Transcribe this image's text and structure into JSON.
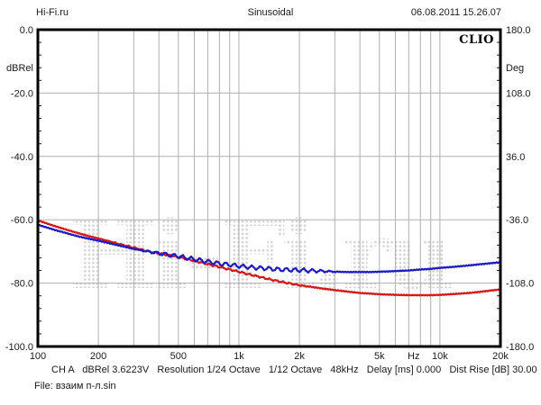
{
  "header": {
    "site": "Hi-Fi.ru",
    "title": "Sinusoidal",
    "datetime": "06.08.2011 15.26.07"
  },
  "brand_label": "CLIO",
  "watermark_text": "Hi-Fi.ru",
  "status_bar": {
    "segments": [
      "CH A",
      "dBRel 3.6223V",
      "Resolution 1/24 Octave",
      "1/12 Octave",
      "48kHz",
      "Delay [ms] 0.000",
      "Dist Rise [dB] 30.00"
    ],
    "line": "CH A   dBRel 3.6223V   Resolution 1/24 Octave   1/12 Octave   48kHz   Delay [ms] 0.000   Dist Rise [dB] 30.00"
  },
  "file_label": "File: взаим п-л.sin",
  "colors": {
    "red_curve": "#dd1414",
    "blue_curve": "#1a1acc",
    "grid": "#b0b0b0",
    "watermark": "#d4d4d4",
    "border": "#000000",
    "text": "#1a1a1a"
  },
  "chart_data": {
    "type": "line",
    "title": "Sinusoidal",
    "x_axis": {
      "scale": "log",
      "min_hz": 100,
      "max_hz": 20000,
      "unit": "Hz",
      "unit_label_pos_hz": 7400,
      "ticks": [
        100,
        200,
        500,
        1000,
        2000,
        5000,
        10000,
        20000
      ],
      "tick_labels": [
        "100",
        "200",
        "500",
        "1k",
        "2k",
        "5k",
        "10k",
        "20k"
      ],
      "grid_hz": [
        200,
        300,
        400,
        500,
        600,
        700,
        800,
        900,
        1000,
        2000,
        3000,
        4000,
        5000,
        6000,
        7000,
        8000,
        9000,
        10000
      ]
    },
    "y_left": {
      "unit": "dBRel",
      "min": -100,
      "max": 0,
      "values": [
        0,
        -20,
        -40,
        -60,
        -80,
        -100
      ],
      "labels": [
        "0.0",
        "-20.0",
        "-40.0",
        "-60.0",
        "-80.0",
        "-100.0"
      ],
      "grid_values": [
        -20,
        -40,
        -60,
        -80
      ],
      "minor_tick_step_db": 4
    },
    "y_right": {
      "unit": "Deg",
      "min": -180,
      "max": 180,
      "labels": [
        "180.0",
        "108.0",
        "36.0",
        "-36.0",
        "-108.0",
        "-180.0"
      ]
    },
    "jitter": {
      "amp_db": 0.12,
      "per_octave": 22
    },
    "series": [
      {
        "id": "red-curve",
        "name": "CH A dBRel (red)",
        "color": "#dd1414",
        "ripple": {
          "amp_db": 0.2,
          "per_octave": 9,
          "from_hz": 200,
          "to_hz": 2500
        },
        "points_hz_db": [
          [
            100,
            -60.2
          ],
          [
            120,
            -61.9
          ],
          [
            140,
            -63.2
          ],
          [
            160,
            -64.3
          ],
          [
            180,
            -65.2
          ],
          [
            200,
            -65.9
          ],
          [
            230,
            -66.9
          ],
          [
            260,
            -67.8
          ],
          [
            300,
            -68.8
          ],
          [
            350,
            -69.9
          ],
          [
            400,
            -70.6
          ],
          [
            450,
            -71.2
          ],
          [
            500,
            -71.8
          ],
          [
            560,
            -72.5
          ],
          [
            630,
            -73.3
          ],
          [
            700,
            -74.0
          ],
          [
            800,
            -74.9
          ],
          [
            900,
            -75.7
          ],
          [
            1000,
            -76.4
          ],
          [
            1100,
            -77.1
          ],
          [
            1250,
            -77.9
          ],
          [
            1400,
            -78.7
          ],
          [
            1600,
            -79.5
          ],
          [
            1800,
            -80.1
          ],
          [
            2000,
            -80.7
          ],
          [
            2300,
            -81.2
          ],
          [
            2600,
            -81.7
          ],
          [
            3000,
            -82.2
          ],
          [
            3500,
            -82.7
          ],
          [
            4000,
            -83.1
          ],
          [
            4500,
            -83.3
          ],
          [
            5000,
            -83.5
          ],
          [
            6000,
            -83.7
          ],
          [
            7000,
            -83.8
          ],
          [
            8000,
            -83.8
          ],
          [
            9000,
            -83.8
          ],
          [
            10000,
            -83.7
          ],
          [
            12000,
            -83.4
          ],
          [
            14000,
            -83.1
          ],
          [
            16000,
            -82.7
          ],
          [
            18000,
            -82.3
          ],
          [
            20000,
            -82.0
          ]
        ]
      },
      {
        "id": "blue-curve",
        "name": "CH A dBRel (blue)",
        "color": "#1a1acc",
        "ripple": {
          "amp_db": 0.55,
          "per_octave": 7,
          "from_hz": 300,
          "to_hz": 3200
        },
        "points_hz_db": [
          [
            100,
            -61.6
          ],
          [
            120,
            -63.1
          ],
          [
            140,
            -64.3
          ],
          [
            160,
            -65.3
          ],
          [
            180,
            -66.0
          ],
          [
            200,
            -66.6
          ],
          [
            230,
            -67.5
          ],
          [
            260,
            -68.3
          ],
          [
            300,
            -69.2
          ],
          [
            350,
            -70.0
          ],
          [
            400,
            -70.6
          ],
          [
            450,
            -71.1
          ],
          [
            500,
            -71.5
          ],
          [
            560,
            -72.1
          ],
          [
            630,
            -72.7
          ],
          [
            700,
            -73.2
          ],
          [
            800,
            -73.8
          ],
          [
            900,
            -74.2
          ],
          [
            1000,
            -74.6
          ],
          [
            1100,
            -74.9
          ],
          [
            1250,
            -75.2
          ],
          [
            1400,
            -75.4
          ],
          [
            1600,
            -75.7
          ],
          [
            1800,
            -75.8
          ],
          [
            2000,
            -75.9
          ],
          [
            2300,
            -76.1
          ],
          [
            2600,
            -76.2
          ],
          [
            3000,
            -76.4
          ],
          [
            3500,
            -76.5
          ],
          [
            4000,
            -76.5
          ],
          [
            4500,
            -76.5
          ],
          [
            5000,
            -76.4
          ],
          [
            6000,
            -76.2
          ],
          [
            7000,
            -76.0
          ],
          [
            8000,
            -75.7
          ],
          [
            9000,
            -75.5
          ],
          [
            10000,
            -75.2
          ],
          [
            12000,
            -74.8
          ],
          [
            14000,
            -74.4
          ],
          [
            16000,
            -74.0
          ],
          [
            18000,
            -73.7
          ],
          [
            20000,
            -73.4
          ]
        ]
      }
    ]
  }
}
